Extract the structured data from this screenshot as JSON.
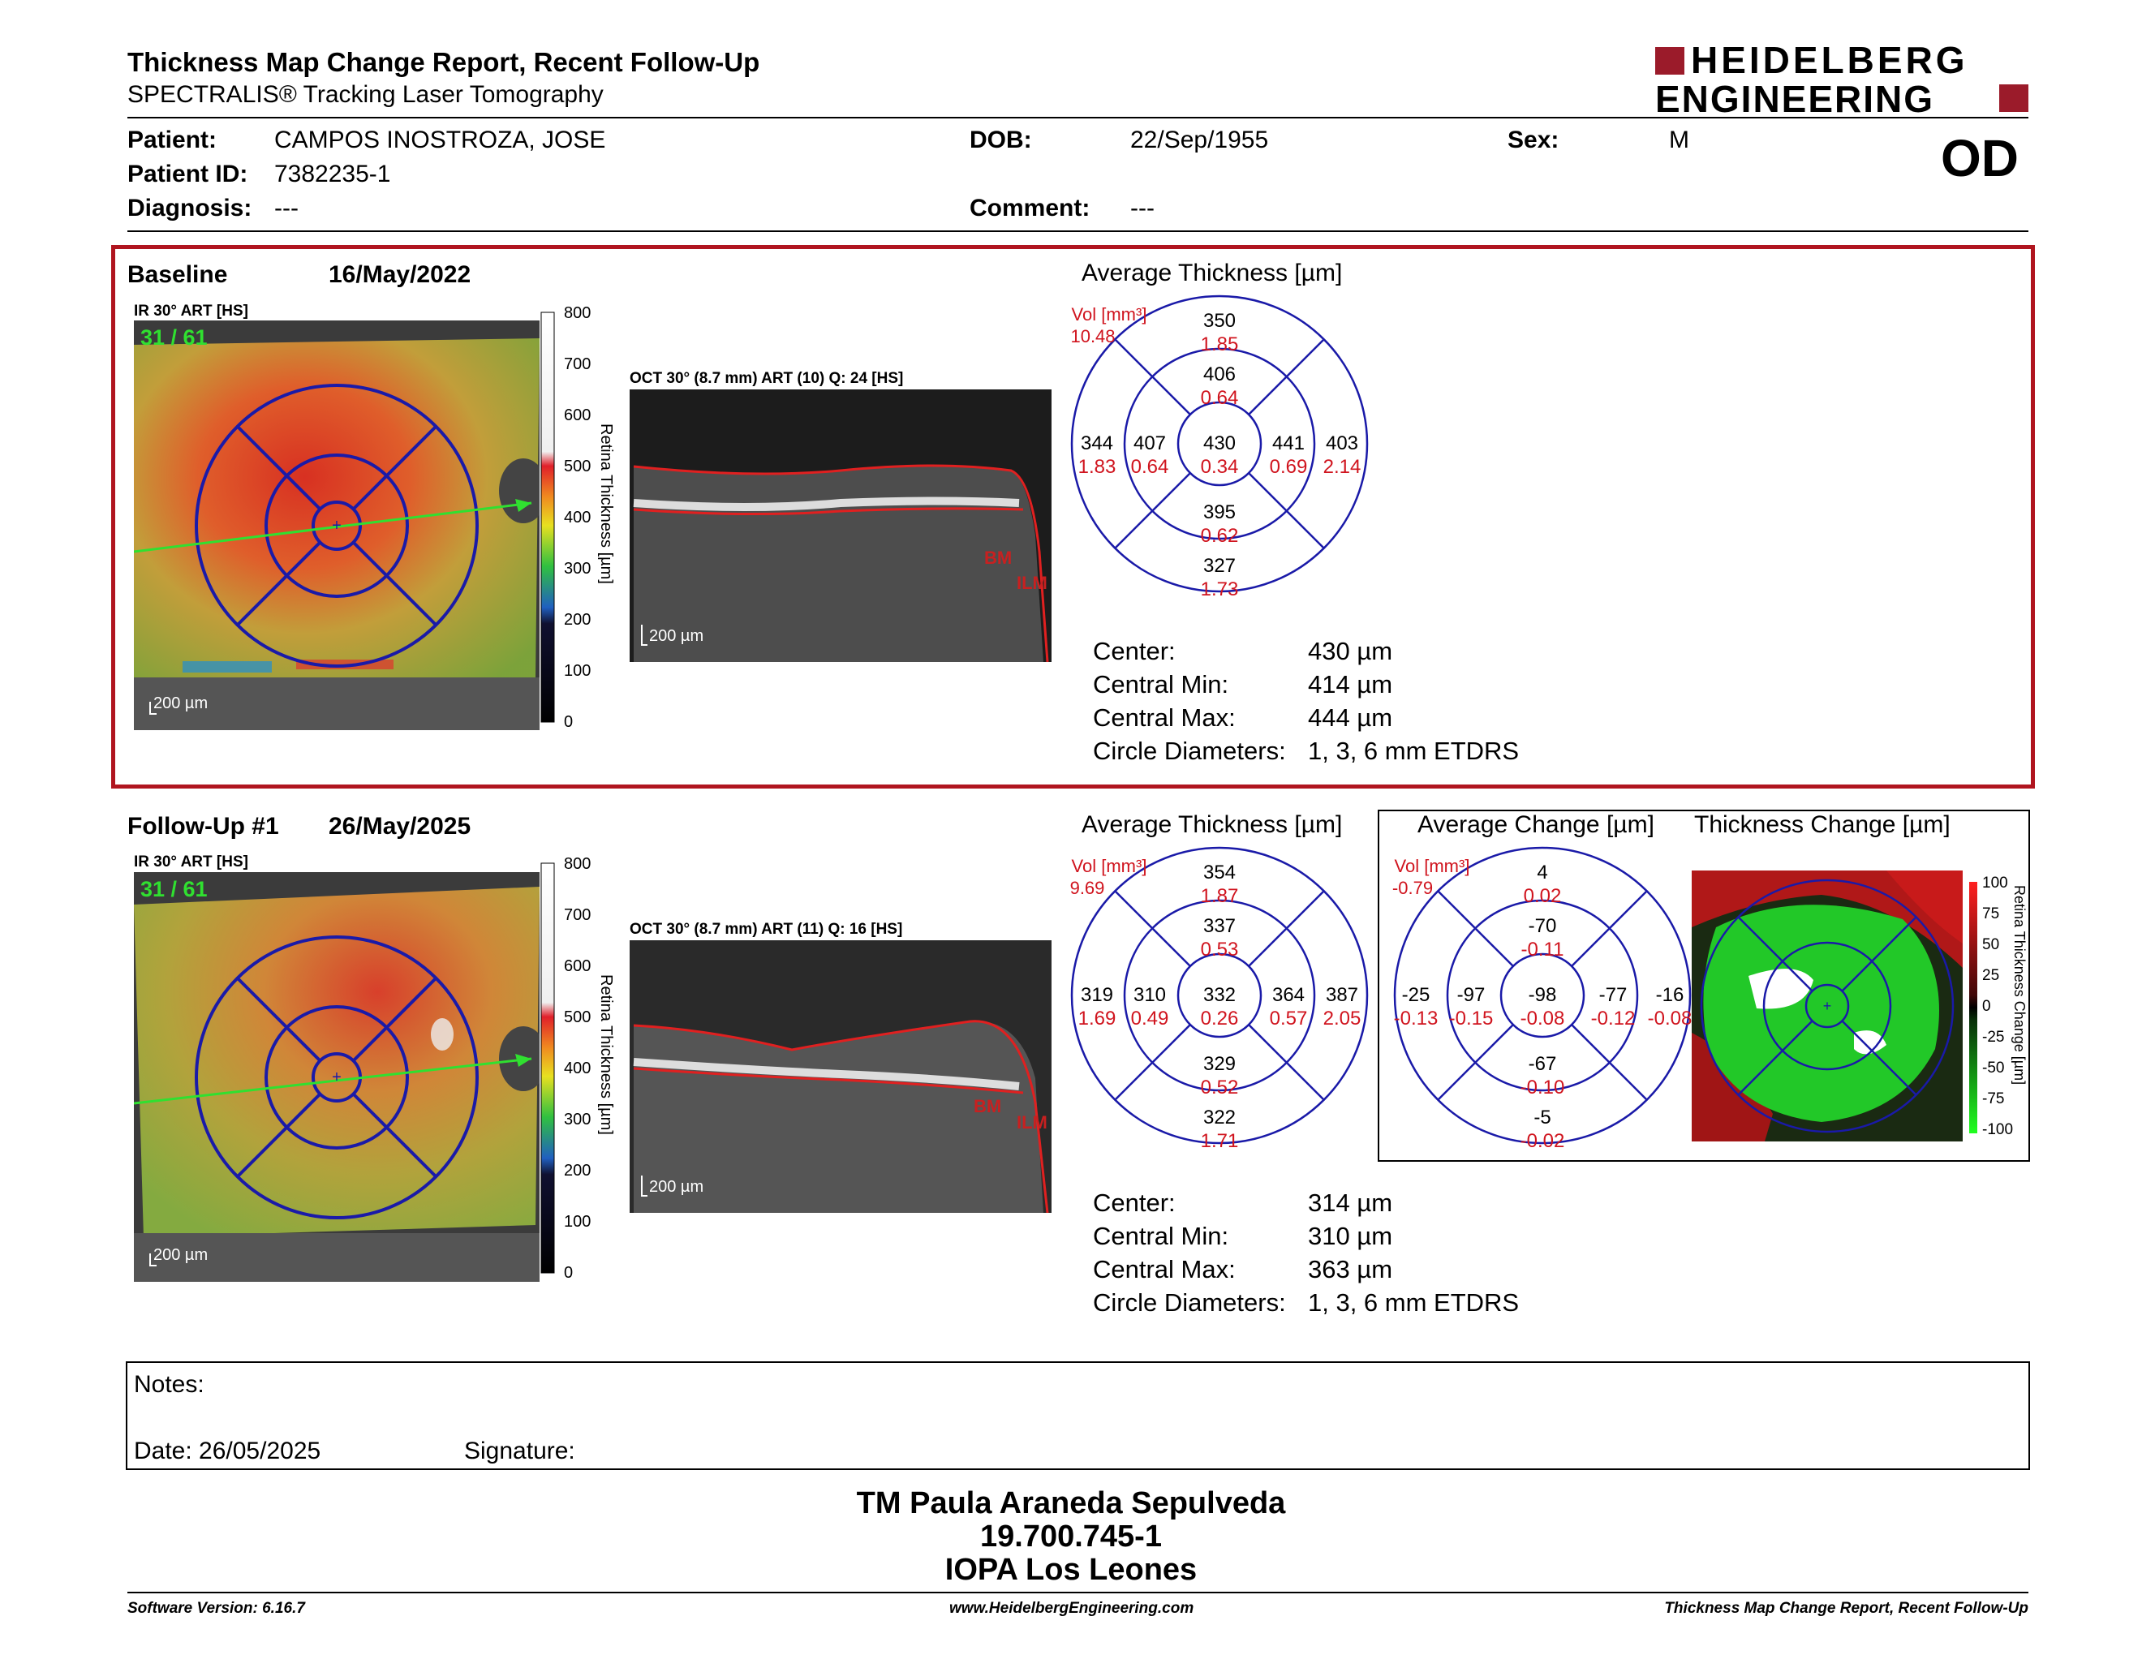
{
  "header": {
    "title": "Thickness Map Change Report, Recent Follow-Up",
    "subtitle": "SPECTRALIS® Tracking Laser Tomography",
    "logo_line1": "HEIDELBERG",
    "logo_line2": "ENGINEERING",
    "eye": "OD"
  },
  "patient": {
    "name_label": "Patient:",
    "name": "CAMPOS INOSTROZA, JOSE",
    "id_label": "Patient ID:",
    "id": "7382235-1",
    "diagnosis_label": "Diagnosis:",
    "diagnosis": "---",
    "dob_label": "DOB:",
    "dob": "22/Sep/1955",
    "comment_label": "Comment:",
    "comment": "---",
    "sex_label": "Sex:",
    "sex": "M"
  },
  "colors": {
    "accent_red": "#b0151f",
    "grid_blue": "#1a1aa8",
    "value_red": "#d0141e"
  },
  "colorbar_ticks": [
    "800",
    "700",
    "600",
    "500",
    "400",
    "300",
    "200",
    "100",
    "0"
  ],
  "colorbar_title": "Retina Thickness [µm]",
  "change_bar_ticks": [
    "100",
    "75",
    "50",
    "25",
    "0",
    "-25",
    "-50",
    "-75",
    "-100"
  ],
  "change_bar_title": "Retina Thickness Change [µm]",
  "baseline": {
    "label": "Baseline",
    "date": "16/May/2022",
    "ir_label": "IR 30° ART [HS]",
    "ir_counter": "31 / 61",
    "ir_scale": "200 µm",
    "oct_label": "OCT 30° (8.7 mm) ART (10) Q: 24 [HS]",
    "oct_scale": "200 µm",
    "bm": "BM",
    "ilm": "ILM",
    "grid_title": "Average Thickness [µm]",
    "vol_label": "Vol [mm³]",
    "vol": "10.48",
    "sectors": {
      "outer_top": [
        "350",
        "1.85"
      ],
      "inner_top": [
        "406",
        "0.64"
      ],
      "outer_left": [
        "344",
        "1.83"
      ],
      "inner_left": [
        "407",
        "0.64"
      ],
      "center": [
        "430",
        "0.34"
      ],
      "inner_right": [
        "441",
        "0.69"
      ],
      "outer_right": [
        "403",
        "2.14"
      ],
      "inner_bottom": [
        "395",
        "0.62"
      ],
      "outer_bottom": [
        "327",
        "1.73"
      ]
    },
    "stats": [
      {
        "label": "Center:",
        "value": "430 µm"
      },
      {
        "label": "Central Min:",
        "value": "414 µm"
      },
      {
        "label": "Central Max:",
        "value": "444 µm"
      },
      {
        "label": "Circle Diameters:",
        "value": "1, 3, 6 mm ETDRS"
      }
    ]
  },
  "followup": {
    "label": "Follow-Up #1",
    "date": "26/May/2025",
    "ir_label": "IR 30° ART [HS]",
    "ir_counter": "31 / 61",
    "ir_scale": "200 µm",
    "oct_label": "OCT 30° (8.7 mm) ART (11) Q: 16 [HS]",
    "oct_scale": "200 µm",
    "bm": "BM",
    "ilm": "ILM",
    "grid_title": "Average Thickness [µm]",
    "vol_label": "Vol [mm³]",
    "vol": "9.69",
    "sectors": {
      "outer_top": [
        "354",
        "1.87"
      ],
      "inner_top": [
        "337",
        "0.53"
      ],
      "outer_left": [
        "319",
        "1.69"
      ],
      "inner_left": [
        "310",
        "0.49"
      ],
      "center": [
        "332",
        "0.26"
      ],
      "inner_right": [
        "364",
        "0.57"
      ],
      "outer_right": [
        "387",
        "2.05"
      ],
      "inner_bottom": [
        "329",
        "0.52"
      ],
      "outer_bottom": [
        "322",
        "1.71"
      ]
    },
    "change_title": "Average Change [µm]",
    "change_vol_label": "Vol [mm³]",
    "change_vol": "-0.79",
    "change_sectors": {
      "outer_top": [
        "4",
        "0.02"
      ],
      "inner_top": [
        "-70",
        "-0.11"
      ],
      "outer_left": [
        "-25",
        "-0.13"
      ],
      "inner_left": [
        "-97",
        "-0.15"
      ],
      "center": [
        "-98",
        "-0.08"
      ],
      "inner_right": [
        "-77",
        "-0.12"
      ],
      "outer_right": [
        "-16",
        "-0.08"
      ],
      "inner_bottom": [
        "-67",
        "-0.10"
      ],
      "outer_bottom": [
        "-5",
        "-0.02"
      ]
    },
    "map_title": "Thickness Change [µm]",
    "stats": [
      {
        "label": "Center:",
        "value": "314 µm"
      },
      {
        "label": "Central Min:",
        "value": "310 µm"
      },
      {
        "label": "Central Max:",
        "value": "363 µm"
      },
      {
        "label": "Circle Diameters:",
        "value": "1, 3, 6 mm ETDRS"
      }
    ]
  },
  "notes": {
    "notes_label": "Notes:",
    "date_label": "Date: 26/05/2025",
    "signature_label": "Signature:"
  },
  "signoff": {
    "line1": "TM Paula Araneda Sepulveda",
    "line2": "19.700.745-1",
    "line3": "IOPA Los Leones"
  },
  "footer": {
    "software": "Software Version: 6.16.7",
    "website": "www.HeidelbergEngineering.com",
    "report_name": "Thickness Map Change Report, Recent Follow-Up"
  }
}
